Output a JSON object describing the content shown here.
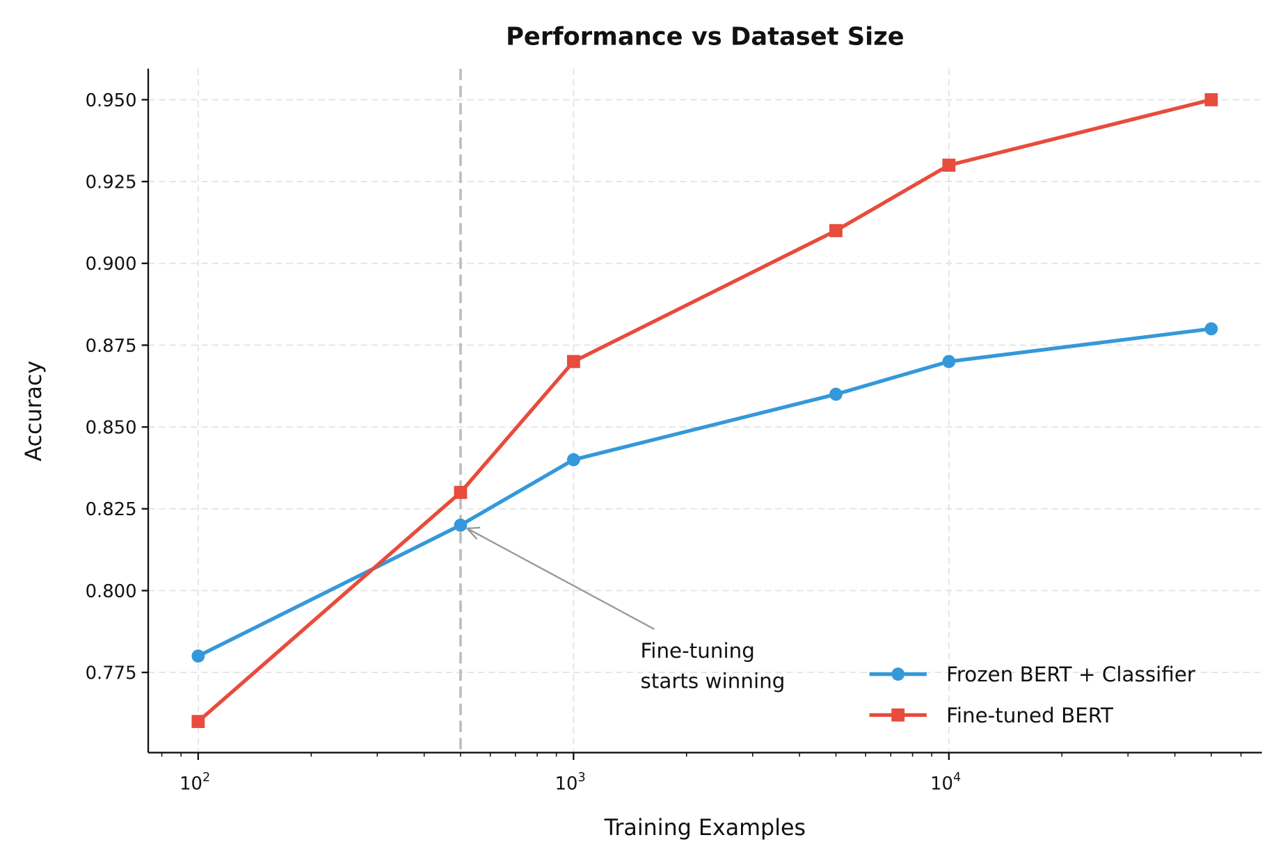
{
  "chart_data": {
    "type": "line",
    "title": "Performance vs Dataset Size",
    "xlabel": "Training Examples",
    "ylabel": "Accuracy",
    "xscale": "log",
    "xlim": [
      73.6,
      68200
    ],
    "ylim": [
      0.7505,
      0.9595
    ],
    "x": [
      100,
      500,
      1000,
      5000,
      10000,
      50000
    ],
    "x_major_ticks": [
      {
        "value": 100,
        "base": "10",
        "exp": "2"
      },
      {
        "value": 1000,
        "base": "10",
        "exp": "3"
      },
      {
        "value": 10000,
        "base": "10",
        "exp": "4"
      }
    ],
    "y_ticks": [
      0.775,
      0.8,
      0.825,
      0.85,
      0.875,
      0.9,
      0.925,
      0.95
    ],
    "y_tick_labels": [
      "0.775",
      "0.800",
      "0.825",
      "0.850",
      "0.875",
      "0.900",
      "0.925",
      "0.950"
    ],
    "grid": true,
    "legend_position": "lower-right",
    "series": [
      {
        "name": "Frozen BERT + Classifier",
        "color": "#3498db",
        "marker": "circle",
        "values": [
          0.78,
          0.82,
          0.84,
          0.86,
          0.87,
          0.88
        ]
      },
      {
        "name": "Fine-tuned BERT",
        "color": "#e74c3c",
        "marker": "square",
        "values": [
          0.76,
          0.83,
          0.87,
          0.91,
          0.93,
          0.95
        ]
      }
    ],
    "vline": {
      "x": 500,
      "color": "#bbbbbb",
      "style": "dashed"
    },
    "annotation": {
      "lines": [
        "Fine-tuning",
        "starts winning"
      ],
      "point": {
        "x": 500,
        "y": 0.82
      },
      "text_pos": {
        "x": 1550,
        "y": 0.7855
      }
    }
  }
}
